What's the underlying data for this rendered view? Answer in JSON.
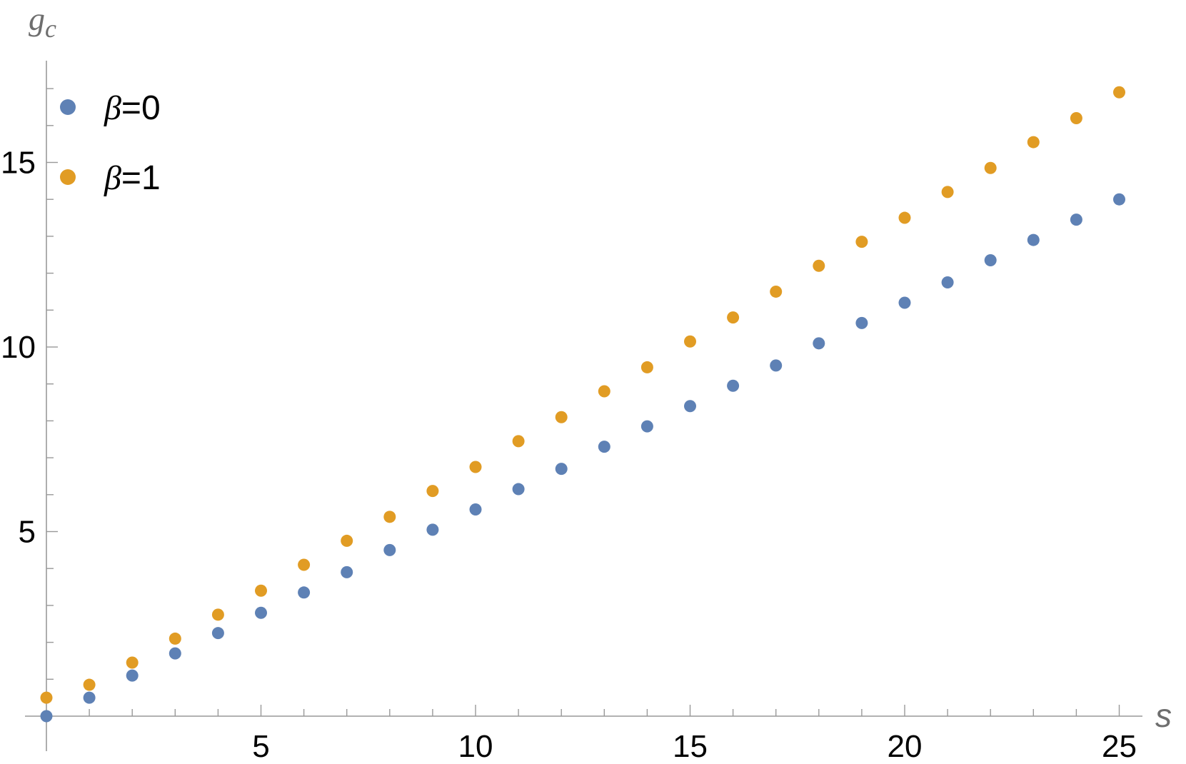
{
  "chart_data": {
    "type": "scatter",
    "title": "",
    "xlabel": "s",
    "ylabel_main": "g",
    "ylabel_sub": "c",
    "xlim": [
      0,
      25.5
    ],
    "ylim": [
      0,
      17
    ],
    "x_ticks": [
      5,
      10,
      15,
      20,
      25
    ],
    "y_ticks": [
      5,
      10,
      15
    ],
    "x_minor_step": 1,
    "y_minor_step": 1,
    "grid": false,
    "legend_position": "top-left",
    "series": [
      {
        "name": "β=0",
        "legend_symbol": "β",
        "legend_value": "=0",
        "color": "#5e81b5",
        "x": [
          0,
          1,
          2,
          3,
          4,
          5,
          6,
          7,
          8,
          9,
          10,
          11,
          12,
          13,
          14,
          15,
          16,
          17,
          18,
          19,
          20,
          21,
          22,
          23,
          24,
          25
        ],
        "y": [
          0,
          0.5,
          1.1,
          1.7,
          2.25,
          2.8,
          3.35,
          3.9,
          4.5,
          5.05,
          5.6,
          6.15,
          6.7,
          7.3,
          7.85,
          8.4,
          8.95,
          9.5,
          10.1,
          10.65,
          11.2,
          11.75,
          12.35,
          12.9,
          13.45,
          14
        ]
      },
      {
        "name": "β=1",
        "legend_symbol": "β",
        "legend_value": "=1",
        "color": "#e19c24",
        "x": [
          0,
          1,
          2,
          3,
          4,
          5,
          6,
          7,
          8,
          9,
          10,
          11,
          12,
          13,
          14,
          15,
          16,
          17,
          18,
          19,
          20,
          21,
          22,
          23,
          24,
          25
        ],
        "y": [
          0.5,
          0.85,
          1.45,
          2.1,
          2.75,
          3.4,
          4.1,
          4.75,
          5.4,
          6.1,
          6.75,
          7.45,
          8.1,
          8.8,
          9.45,
          10.15,
          10.8,
          11.5,
          12.2,
          12.85,
          13.5,
          14.2,
          14.85,
          15.55,
          16.2,
          16.9
        ]
      }
    ]
  }
}
